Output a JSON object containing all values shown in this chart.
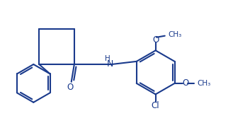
{
  "bg_color": "#ffffff",
  "line_color": "#1a3a8c",
  "line_width": 1.5,
  "figsize": [
    3.29,
    1.91
  ],
  "dpi": 100,
  "xlim": [
    0,
    9.5
  ],
  "ylim": [
    0,
    5.5
  ]
}
